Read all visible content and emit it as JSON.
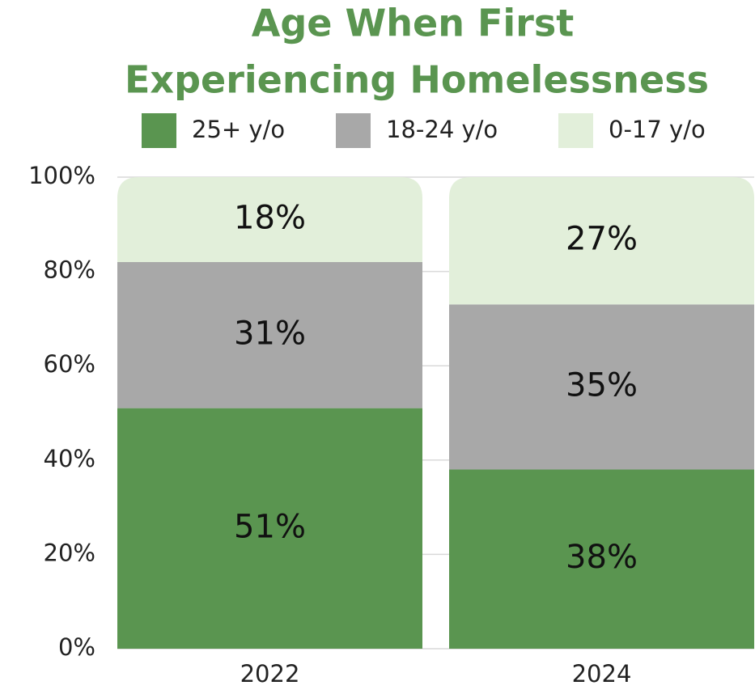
{
  "chart_data": {
    "type": "stacked_bar",
    "title": [
      "Age When First",
      "Experiencing Homelessness"
    ],
    "title_color": "#5a9550",
    "categories": [
      "2022",
      "2024"
    ],
    "series": [
      {
        "name": "25+ y/o",
        "color": "#5a9550",
        "values": [
          51,
          38
        ],
        "value_labels": [
          "51%",
          "38%"
        ]
      },
      {
        "name": "18-24 y/o",
        "color": "#a8a8a8",
        "values": [
          31,
          35
        ],
        "value_labels": [
          "31%",
          "35%"
        ]
      },
      {
        "name": "0-17 y/o",
        "color": "#e2efda",
        "values": [
          18,
          27
        ],
        "value_labels": [
          "18%",
          "27%"
        ]
      }
    ],
    "ylim": [
      0,
      100
    ],
    "yticks": [
      {
        "value": 0,
        "label": "0%"
      },
      {
        "value": 20,
        "label": "20%"
      },
      {
        "value": 40,
        "label": "40%"
      },
      {
        "value": 60,
        "label": "60%"
      },
      {
        "value": 80,
        "label": "80%"
      },
      {
        "value": 100,
        "label": "100%"
      }
    ],
    "grid": true,
    "legend": "top"
  }
}
